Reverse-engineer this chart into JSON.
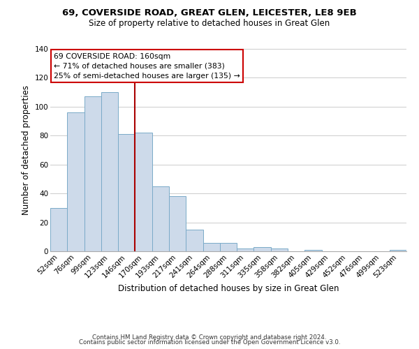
{
  "title": "69, COVERSIDE ROAD, GREAT GLEN, LEICESTER, LE8 9EB",
  "subtitle": "Size of property relative to detached houses in Great Glen",
  "xlabel": "Distribution of detached houses by size in Great Glen",
  "ylabel": "Number of detached properties",
  "bar_labels": [
    "52sqm",
    "76sqm",
    "99sqm",
    "123sqm",
    "146sqm",
    "170sqm",
    "193sqm",
    "217sqm",
    "241sqm",
    "264sqm",
    "288sqm",
    "311sqm",
    "335sqm",
    "358sqm",
    "382sqm",
    "405sqm",
    "429sqm",
    "452sqm",
    "476sqm",
    "499sqm",
    "523sqm"
  ],
  "bar_values": [
    30,
    96,
    107,
    110,
    81,
    82,
    45,
    38,
    15,
    6,
    6,
    2,
    3,
    2,
    0,
    1,
    0,
    0,
    0,
    0,
    1
  ],
  "bar_color": "#cddaea",
  "bar_edge_color": "#7aaac8",
  "vline_color": "#aa0000",
  "ylim": [
    0,
    140
  ],
  "yticks": [
    0,
    20,
    40,
    60,
    80,
    100,
    120,
    140
  ],
  "annotation_title": "69 COVERSIDE ROAD: 160sqm",
  "annotation_line1": "← 71% of detached houses are smaller (383)",
  "annotation_line2": "25% of semi-detached houses are larger (135) →",
  "annotation_box_color": "#ffffff",
  "annotation_box_edge": "#cc0000",
  "footer1": "Contains HM Land Registry data © Crown copyright and database right 2024.",
  "footer2": "Contains public sector information licensed under the Open Government Licence v3.0.",
  "background_color": "#ffffff",
  "grid_color": "#cccccc",
  "title_fontsize": 9.5,
  "subtitle_fontsize": 8.5,
  "xlabel_fontsize": 8.5,
  "ylabel_fontsize": 8.5,
  "tick_fontsize": 7.5,
  "footer_fontsize": 6.2,
  "annot_fontsize": 7.8
}
